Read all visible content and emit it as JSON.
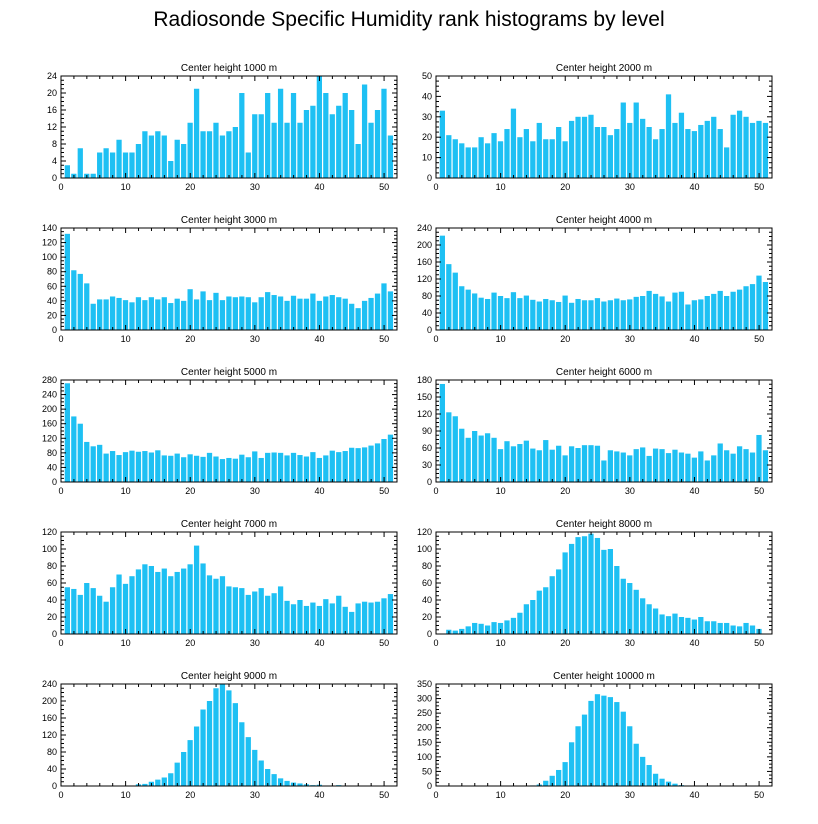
{
  "title": "Radiosonde Specific Humidity rank histograms by level",
  "colors": {
    "bar": "#1ec0f3",
    "bar_edge": "#ffffff",
    "axis": "#000000",
    "background": "#ffffff"
  },
  "chart_data": [
    {
      "type": "bar",
      "title": "Center height 1000 m",
      "xlim": [
        0,
        52
      ],
      "xticks": [
        0,
        10,
        20,
        30,
        40,
        50
      ],
      "ylim": [
        0,
        24
      ],
      "yticks": [
        0,
        4,
        8,
        12,
        16,
        20,
        24
      ],
      "x": [
        1,
        2,
        3,
        4,
        5,
        6,
        7,
        8,
        9,
        10,
        11,
        12,
        13,
        14,
        15,
        16,
        17,
        18,
        19,
        20,
        21,
        22,
        23,
        24,
        25,
        26,
        27,
        28,
        29,
        30,
        31,
        32,
        33,
        34,
        35,
        36,
        37,
        38,
        39,
        40,
        41,
        42,
        43,
        44,
        45,
        46,
        47,
        48,
        49,
        50,
        51
      ],
      "values": [
        3,
        1,
        7,
        1,
        1,
        6,
        7,
        6,
        9,
        6,
        6,
        8,
        11,
        10,
        11,
        10,
        4,
        9,
        8,
        13,
        21,
        11,
        11,
        13,
        10,
        11,
        12,
        20,
        6,
        15,
        15,
        20,
        13,
        21,
        13,
        20,
        13,
        16,
        17,
        24,
        20,
        15,
        17,
        20,
        16,
        8,
        22,
        13,
        16,
        21,
        10
      ]
    },
    {
      "type": "bar",
      "title": "Center height 2000 m",
      "xlim": [
        0,
        52
      ],
      "xticks": [
        0,
        10,
        20,
        30,
        40,
        50
      ],
      "ylim": [
        0,
        50
      ],
      "yticks": [
        0,
        10,
        20,
        30,
        40,
        50
      ],
      "x": [
        1,
        2,
        3,
        4,
        5,
        6,
        7,
        8,
        9,
        10,
        11,
        12,
        13,
        14,
        15,
        16,
        17,
        18,
        19,
        20,
        21,
        22,
        23,
        24,
        25,
        26,
        27,
        28,
        29,
        30,
        31,
        32,
        33,
        34,
        35,
        36,
        37,
        38,
        39,
        40,
        41,
        42,
        43,
        44,
        45,
        46,
        47,
        48,
        49,
        50,
        51
      ],
      "values": [
        33,
        21,
        19,
        17,
        15,
        15,
        20,
        17,
        22,
        18,
        24,
        34,
        20,
        24,
        18,
        27,
        19,
        19,
        25,
        18,
        28,
        30,
        30,
        31,
        25,
        25,
        21,
        24,
        37,
        27,
        37,
        29,
        25,
        19,
        24,
        41,
        27,
        32,
        24,
        23,
        26,
        28,
        30,
        24,
        15,
        31,
        33,
        30,
        27,
        28,
        27
      ]
    },
    {
      "type": "bar",
      "title": "Center height 3000 m",
      "xlim": [
        0,
        52
      ],
      "xticks": [
        0,
        10,
        20,
        30,
        40,
        50
      ],
      "ylim": [
        0,
        140
      ],
      "yticks": [
        0,
        20,
        40,
        60,
        80,
        100,
        120,
        140
      ],
      "x": [
        1,
        2,
        3,
        4,
        5,
        6,
        7,
        8,
        9,
        10,
        11,
        12,
        13,
        14,
        15,
        16,
        17,
        18,
        19,
        20,
        21,
        22,
        23,
        24,
        25,
        26,
        27,
        28,
        29,
        30,
        31,
        32,
        33,
        34,
        35,
        36,
        37,
        38,
        39,
        40,
        41,
        42,
        43,
        44,
        45,
        46,
        47,
        48,
        49,
        50,
        51
      ],
      "values": [
        132,
        82,
        77,
        64,
        36,
        42,
        42,
        46,
        44,
        41,
        38,
        45,
        41,
        45,
        42,
        45,
        37,
        43,
        40,
        56,
        42,
        53,
        41,
        51,
        41,
        46,
        45,
        46,
        45,
        38,
        45,
        52,
        48,
        46,
        40,
        47,
        43,
        43,
        50,
        40,
        46,
        48,
        45,
        43,
        36,
        30,
        40,
        44,
        50,
        64,
        53
      ]
    },
    {
      "type": "bar",
      "title": "Center height 4000 m",
      "xlim": [
        0,
        52
      ],
      "xticks": [
        0,
        10,
        20,
        30,
        40,
        50
      ],
      "ylim": [
        0,
        240
      ],
      "yticks": [
        0,
        40,
        80,
        120,
        160,
        200,
        240
      ],
      "x": [
        1,
        2,
        3,
        4,
        5,
        6,
        7,
        8,
        9,
        10,
        11,
        12,
        13,
        14,
        15,
        16,
        17,
        18,
        19,
        20,
        21,
        22,
        23,
        24,
        25,
        26,
        27,
        28,
        29,
        30,
        31,
        32,
        33,
        34,
        35,
        36,
        37,
        38,
        39,
        40,
        41,
        42,
        43,
        44,
        45,
        46,
        47,
        48,
        49,
        50,
        51
      ],
      "values": [
        222,
        155,
        135,
        103,
        95,
        86,
        76,
        73,
        88,
        80,
        75,
        89,
        75,
        81,
        71,
        67,
        73,
        70,
        66,
        81,
        64,
        73,
        70,
        70,
        75,
        67,
        70,
        74,
        70,
        72,
        78,
        80,
        92,
        85,
        79,
        67,
        88,
        90,
        60,
        70,
        72,
        80,
        85,
        92,
        80,
        90,
        95,
        103,
        108,
        128,
        113
      ]
    },
    {
      "type": "bar",
      "title": "Center height 5000 m",
      "xlim": [
        0,
        52
      ],
      "xticks": [
        0,
        10,
        20,
        30,
        40,
        50
      ],
      "ylim": [
        0,
        280
      ],
      "yticks": [
        0,
        40,
        80,
        120,
        160,
        200,
        240,
        280
      ],
      "x": [
        1,
        2,
        3,
        4,
        5,
        6,
        7,
        8,
        9,
        10,
        11,
        12,
        13,
        14,
        15,
        16,
        17,
        18,
        19,
        20,
        21,
        22,
        23,
        24,
        25,
        26,
        27,
        28,
        29,
        30,
        31,
        32,
        33,
        34,
        35,
        36,
        37,
        38,
        39,
        40,
        41,
        42,
        43,
        44,
        45,
        46,
        47,
        48,
        49,
        50,
        51
      ],
      "values": [
        271,
        180,
        160,
        110,
        98,
        102,
        78,
        85,
        74,
        82,
        86,
        83,
        85,
        81,
        87,
        73,
        72,
        78,
        68,
        76,
        72,
        69,
        80,
        70,
        63,
        66,
        64,
        75,
        68,
        84,
        66,
        80,
        81,
        80,
        73,
        80,
        74,
        70,
        82,
        66,
        73,
        86,
        82,
        85,
        94,
        93,
        95,
        100,
        106,
        118,
        130
      ]
    },
    {
      "type": "bar",
      "title": "Center height 6000 m",
      "xlim": [
        0,
        52
      ],
      "xticks": [
        0,
        10,
        20,
        30,
        40,
        50
      ],
      "ylim": [
        0,
        180
      ],
      "yticks": [
        0,
        30,
        60,
        90,
        120,
        150,
        180
      ],
      "x": [
        1,
        2,
        3,
        4,
        5,
        6,
        7,
        8,
        9,
        10,
        11,
        12,
        13,
        14,
        15,
        16,
        17,
        18,
        19,
        20,
        21,
        22,
        23,
        24,
        25,
        26,
        27,
        28,
        29,
        30,
        31,
        32,
        33,
        34,
        35,
        36,
        37,
        38,
        39,
        40,
        41,
        42,
        43,
        44,
        45,
        46,
        47,
        48,
        49,
        50,
        51
      ],
      "values": [
        173,
        123,
        116,
        94,
        78,
        90,
        82,
        86,
        78,
        58,
        72,
        63,
        67,
        73,
        59,
        56,
        74,
        57,
        64,
        47,
        63,
        60,
        65,
        65,
        64,
        38,
        56,
        54,
        52,
        47,
        58,
        61,
        46,
        59,
        58,
        51,
        57,
        52,
        50,
        43,
        54,
        38,
        47,
        68,
        56,
        50,
        63,
        58,
        52,
        83,
        56
      ]
    },
    {
      "type": "bar",
      "title": "Center height 7000 m",
      "xlim": [
        0,
        52
      ],
      "xticks": [
        0,
        10,
        20,
        30,
        40,
        50
      ],
      "ylim": [
        0,
        120
      ],
      "yticks": [
        0,
        20,
        40,
        60,
        80,
        100,
        120
      ],
      "x": [
        1,
        2,
        3,
        4,
        5,
        6,
        7,
        8,
        9,
        10,
        11,
        12,
        13,
        14,
        15,
        16,
        17,
        18,
        19,
        20,
        21,
        22,
        23,
        24,
        25,
        26,
        27,
        28,
        29,
        30,
        31,
        32,
        33,
        34,
        35,
        36,
        37,
        38,
        39,
        40,
        41,
        42,
        43,
        44,
        45,
        46,
        47,
        48,
        49,
        50,
        51
      ],
      "values": [
        55,
        53,
        46,
        60,
        54,
        45,
        38,
        55,
        70,
        59,
        68,
        76,
        82,
        80,
        73,
        77,
        68,
        73,
        77,
        82,
        104,
        83,
        69,
        65,
        68,
        56,
        55,
        54,
        46,
        50,
        54,
        45,
        48,
        56,
        39,
        35,
        40,
        33,
        37,
        33,
        41,
        36,
        45,
        32,
        26,
        36,
        38,
        37,
        38,
        42,
        47
      ]
    },
    {
      "type": "bar",
      "title": "Center height 8000 m",
      "xlim": [
        0,
        52
      ],
      "xticks": [
        0,
        10,
        20,
        30,
        40,
        50
      ],
      "ylim": [
        0,
        120
      ],
      "yticks": [
        0,
        20,
        40,
        60,
        80,
        100,
        120
      ],
      "x": [
        1,
        2,
        3,
        4,
        5,
        6,
        7,
        8,
        9,
        10,
        11,
        12,
        13,
        14,
        15,
        16,
        17,
        18,
        19,
        20,
        21,
        22,
        23,
        24,
        25,
        26,
        27,
        28,
        29,
        30,
        31,
        32,
        33,
        34,
        35,
        36,
        37,
        38,
        39,
        40,
        41,
        42,
        43,
        44,
        45,
        46,
        47,
        48,
        49,
        50,
        51
      ],
      "values": [
        0,
        5,
        4,
        6,
        9,
        13,
        12,
        10,
        14,
        13,
        16,
        19,
        25,
        35,
        40,
        51,
        55,
        68,
        76,
        96,
        106,
        114,
        115,
        118,
        113,
        99,
        100,
        80,
        65,
        60,
        52,
        42,
        35,
        30,
        23,
        21,
        24,
        20,
        19,
        17,
        20,
        15,
        15,
        13,
        13,
        10,
        9,
        13,
        10,
        6,
        0
      ]
    },
    {
      "type": "bar",
      "title": "Center height 9000 m",
      "xlim": [
        0,
        52
      ],
      "xticks": [
        0,
        10,
        20,
        30,
        40,
        50
      ],
      "ylim": [
        0,
        240
      ],
      "yticks": [
        0,
        40,
        80,
        120,
        160,
        200,
        240
      ],
      "x": [
        1,
        2,
        3,
        4,
        5,
        6,
        7,
        8,
        9,
        10,
        11,
        12,
        13,
        14,
        15,
        16,
        17,
        18,
        19,
        20,
        21,
        22,
        23,
        24,
        25,
        26,
        27,
        28,
        29,
        30,
        31,
        32,
        33,
        34,
        35,
        36,
        37,
        38,
        39,
        40,
        41,
        42,
        43,
        44,
        45,
        46,
        47,
        48,
        49,
        50,
        51
      ],
      "values": [
        0,
        0,
        0,
        0,
        0,
        0,
        0,
        0,
        0,
        0,
        1,
        4,
        5,
        10,
        15,
        20,
        30,
        55,
        80,
        108,
        140,
        180,
        200,
        230,
        240,
        225,
        195,
        150,
        115,
        85,
        60,
        40,
        28,
        18,
        12,
        8,
        6,
        4,
        2,
        3,
        1,
        1,
        2,
        1,
        1,
        1,
        0,
        0,
        0,
        0,
        0
      ]
    },
    {
      "type": "bar",
      "title": "Center height 10000 m",
      "xlim": [
        0,
        52
      ],
      "xticks": [
        0,
        10,
        20,
        30,
        40,
        50
      ],
      "ylim": [
        0,
        350
      ],
      "yticks": [
        0,
        50,
        100,
        150,
        200,
        250,
        300,
        350
      ],
      "x": [
        1,
        2,
        3,
        4,
        5,
        6,
        7,
        8,
        9,
        10,
        11,
        12,
        13,
        14,
        15,
        16,
        17,
        18,
        19,
        20,
        21,
        22,
        23,
        24,
        25,
        26,
        27,
        28,
        29,
        30,
        31,
        32,
        33,
        34,
        35,
        36,
        37,
        38,
        39,
        40,
        41,
        42,
        43,
        44,
        45,
        46,
        47,
        48,
        49,
        50,
        51
      ],
      "values": [
        0,
        0,
        0,
        0,
        0,
        0,
        0,
        0,
        0,
        0,
        0,
        0,
        0,
        0,
        2,
        5,
        18,
        35,
        55,
        82,
        150,
        205,
        245,
        292,
        315,
        310,
        305,
        288,
        255,
        205,
        145,
        100,
        72,
        42,
        25,
        15,
        8,
        3,
        1,
        0,
        0,
        0,
        0,
        0,
        0,
        0,
        0,
        0,
        0,
        0,
        0
      ]
    }
  ]
}
